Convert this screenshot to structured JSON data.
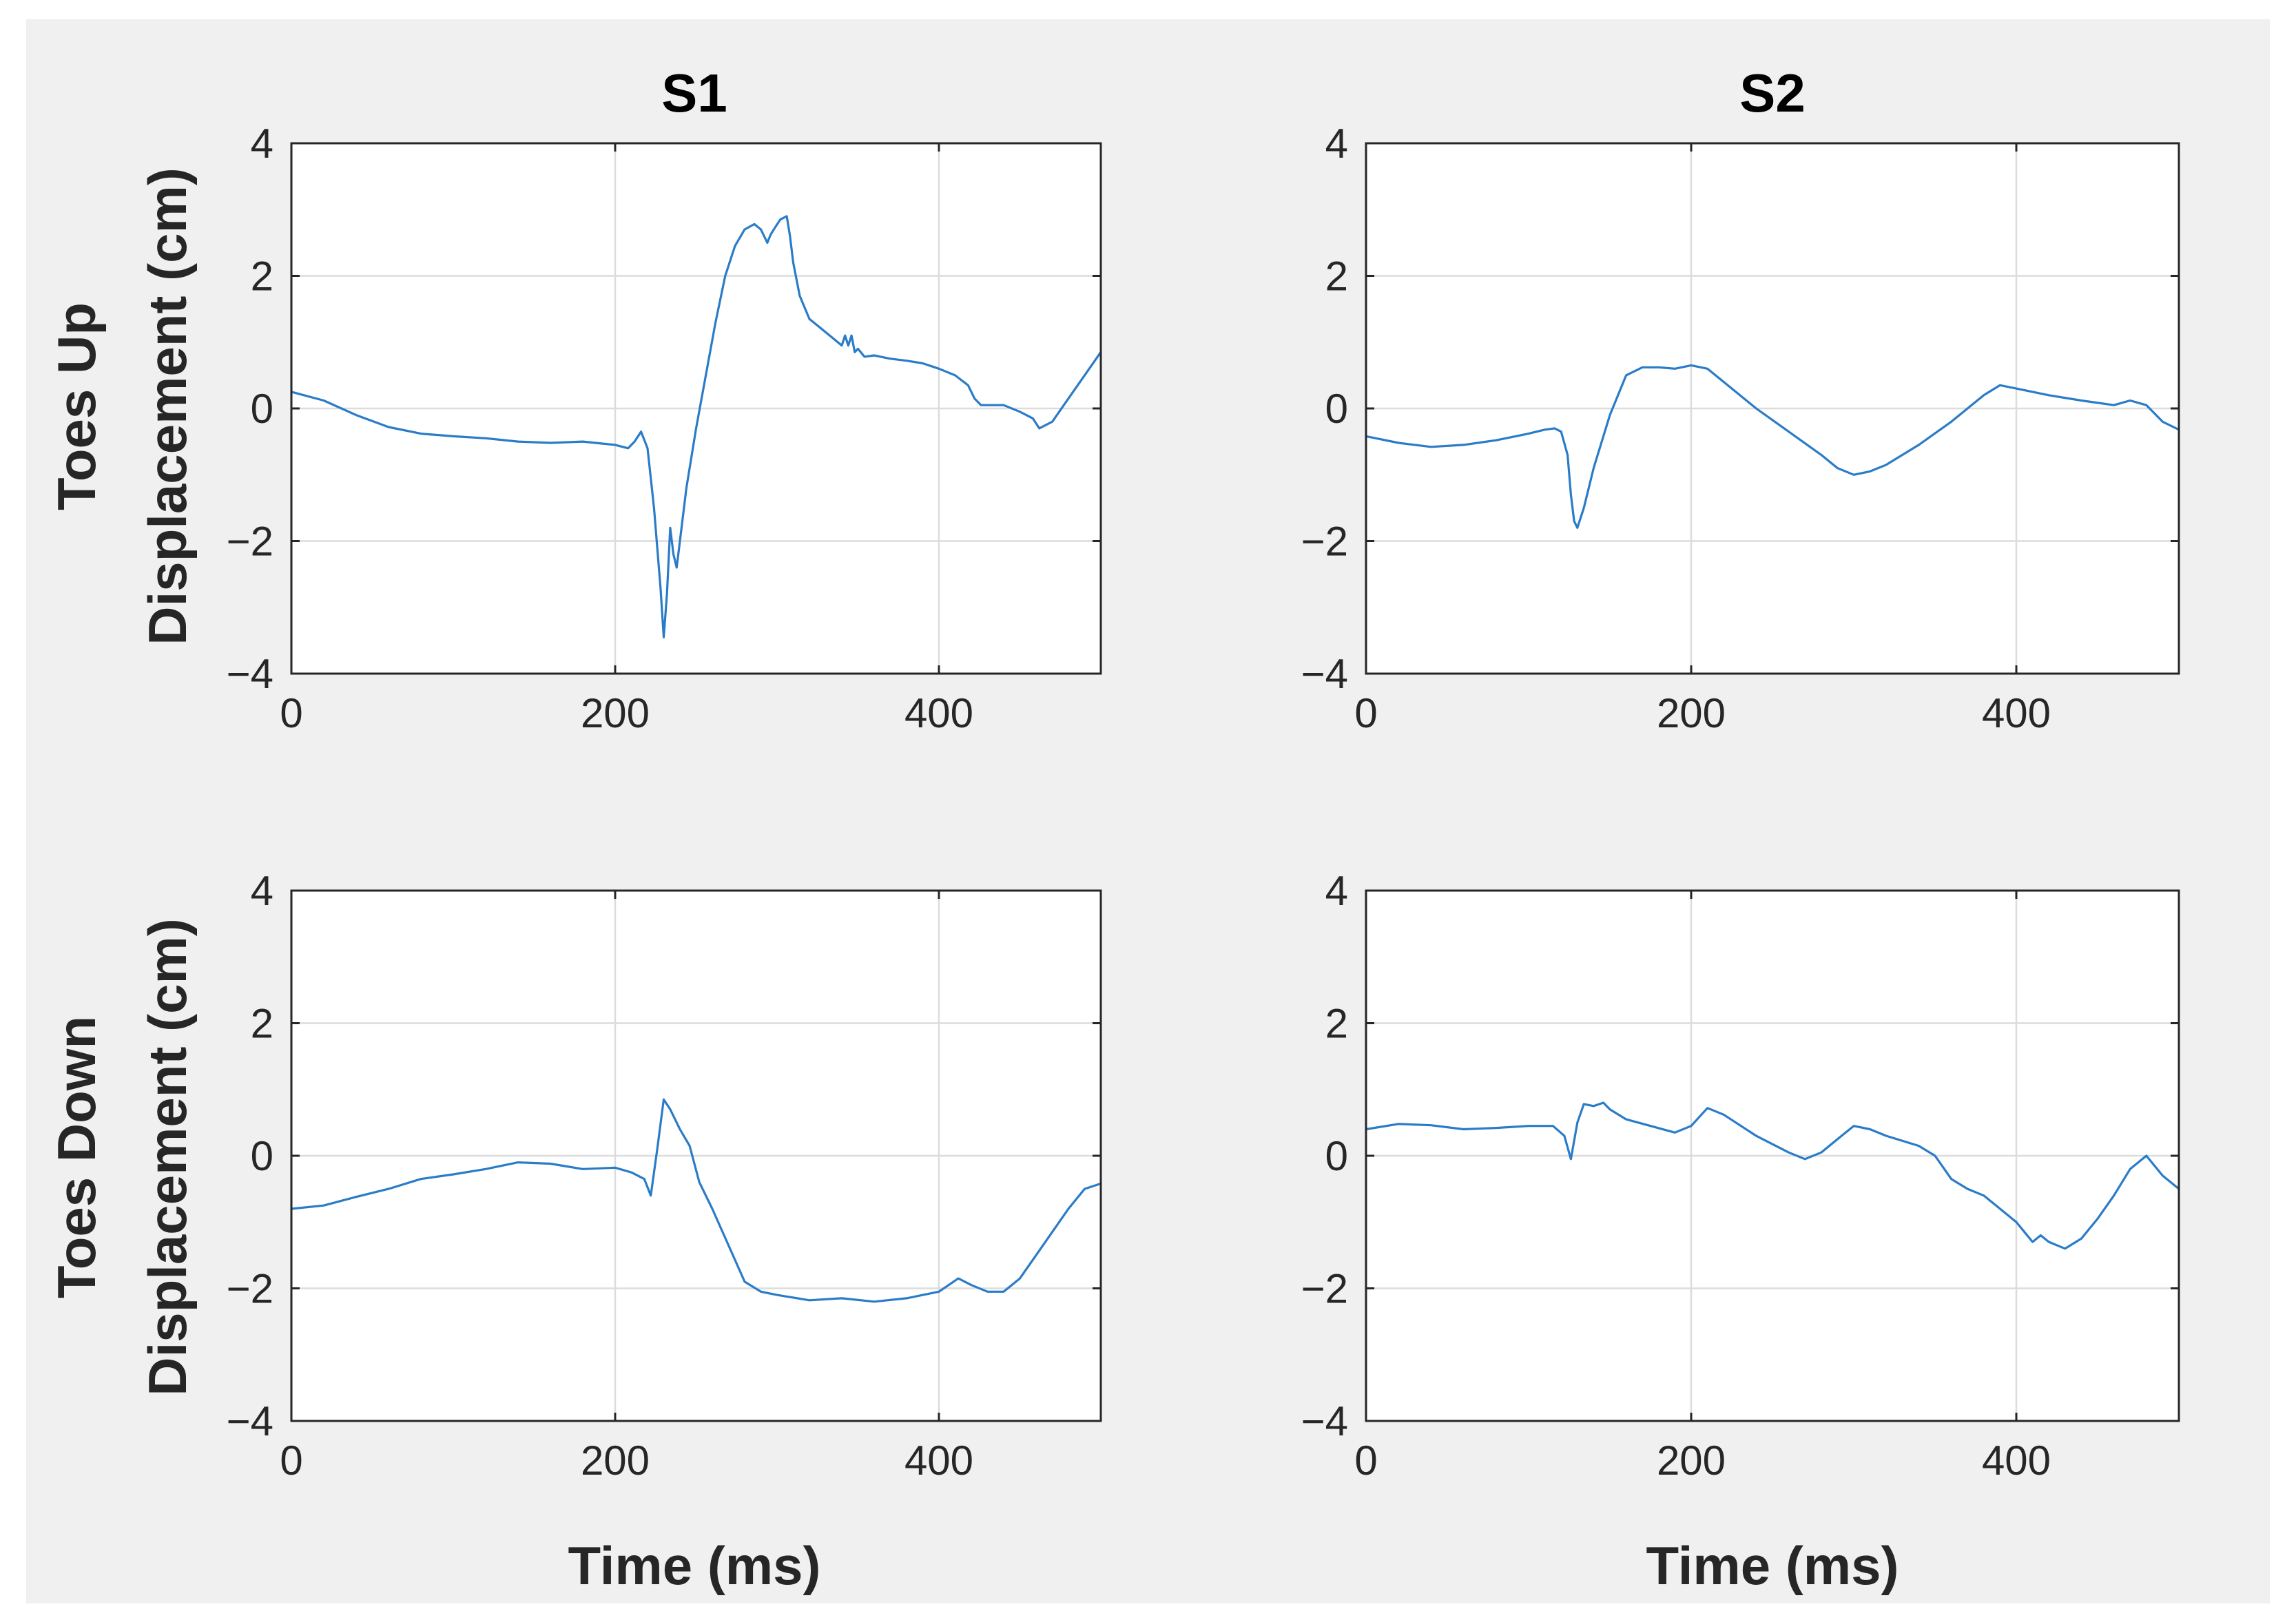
{
  "figure": {
    "background": "#f0f0f0",
    "line_color": "#2a7cc8"
  },
  "chart_data": [
    {
      "type": "line",
      "title": "S1",
      "xlabel": "",
      "ylabel": [
        "Toes Up",
        "Displacement (cm)"
      ],
      "xlim": [
        0,
        500
      ],
      "ylim": [
        -4,
        4
      ],
      "xticks": [
        0,
        200,
        400
      ],
      "yticks": [
        -4,
        -2,
        0,
        2,
        4
      ],
      "xtick_labels": [
        "0",
        "200",
        "400"
      ],
      "ytick_labels": [
        "−4",
        "−2",
        "0",
        "2",
        "4"
      ],
      "grid": true,
      "series": [
        {
          "name": "S1 Toes Up",
          "x": [
            0,
            20,
            40,
            60,
            80,
            100,
            120,
            140,
            160,
            180,
            200,
            208,
            212,
            216,
            220,
            224,
            228,
            230,
            232,
            234,
            236,
            238,
            240,
            244,
            250,
            256,
            262,
            268,
            274,
            280,
            286,
            290,
            294,
            296,
            298,
            302,
            306,
            308,
            310,
            314,
            320,
            330,
            340,
            342,
            344,
            346,
            348,
            350,
            354,
            360,
            370,
            380,
            390,
            400,
            410,
            418,
            422,
            426,
            430,
            440,
            450,
            458,
            462,
            470,
            480,
            490,
            500
          ],
          "y": [
            0.25,
            0.12,
            -0.1,
            -0.28,
            -0.38,
            -0.42,
            -0.45,
            -0.5,
            -0.52,
            -0.5,
            -0.55,
            -0.6,
            -0.5,
            -0.35,
            -0.6,
            -1.5,
            -2.7,
            -3.45,
            -2.8,
            -1.8,
            -2.2,
            -2.4,
            -2.0,
            -1.2,
            -0.3,
            0.5,
            1.3,
            2.0,
            2.45,
            2.7,
            2.78,
            2.7,
            2.5,
            2.62,
            2.7,
            2.85,
            2.9,
            2.6,
            2.2,
            1.7,
            1.35,
            1.15,
            0.95,
            1.1,
            0.95,
            1.1,
            0.85,
            0.9,
            0.78,
            0.8,
            0.75,
            0.72,
            0.68,
            0.6,
            0.5,
            0.35,
            0.15,
            0.05,
            0.05,
            0.05,
            -0.05,
            -0.15,
            -0.3,
            -0.2,
            0.15,
            0.5,
            0.85
          ]
        }
      ]
    },
    {
      "type": "line",
      "title": "S2",
      "xlabel": "",
      "ylabel": "",
      "xlim": [
        0,
        500
      ],
      "ylim": [
        -4,
        4
      ],
      "xticks": [
        0,
        200,
        400
      ],
      "yticks": [
        -4,
        -2,
        0,
        2,
        4
      ],
      "xtick_labels": [
        "0",
        "200",
        "400"
      ],
      "ytick_labels": [
        "−4",
        "−2",
        "0",
        "2",
        "4"
      ],
      "grid": true,
      "series": [
        {
          "name": "S2 Toes Up",
          "x": [
            0,
            20,
            40,
            60,
            80,
            100,
            110,
            116,
            120,
            124,
            126,
            128,
            130,
            134,
            140,
            150,
            160,
            170,
            180,
            190,
            200,
            210,
            220,
            240,
            260,
            280,
            290,
            300,
            310,
            320,
            340,
            360,
            380,
            390,
            400,
            420,
            440,
            460,
            470,
            480,
            490,
            500
          ],
          "y": [
            -0.42,
            -0.52,
            -0.58,
            -0.55,
            -0.48,
            -0.38,
            -0.32,
            -0.3,
            -0.35,
            -0.7,
            -1.3,
            -1.7,
            -1.8,
            -1.5,
            -0.9,
            -0.1,
            0.5,
            0.62,
            0.62,
            0.6,
            0.65,
            0.6,
            0.4,
            0.0,
            -0.35,
            -0.7,
            -0.9,
            -1.0,
            -0.95,
            -0.85,
            -0.55,
            -0.2,
            0.2,
            0.35,
            0.3,
            0.2,
            0.12,
            0.05,
            0.12,
            0.05,
            -0.2,
            -0.32
          ]
        }
      ]
    },
    {
      "type": "line",
      "title": "",
      "xlabel": "Time (ms)",
      "ylabel": [
        "Toes Down",
        "Displacement (cm)"
      ],
      "xlim": [
        0,
        500
      ],
      "ylim": [
        -4,
        4
      ],
      "xticks": [
        0,
        200,
        400
      ],
      "yticks": [
        -4,
        -2,
        0,
        2,
        4
      ],
      "xtick_labels": [
        "0",
        "200",
        "400"
      ],
      "ytick_labels": [
        "−4",
        "−2",
        "0",
        "2",
        "4"
      ],
      "grid": true,
      "series": [
        {
          "name": "S1 Toes Down",
          "x": [
            0,
            20,
            40,
            60,
            80,
            100,
            120,
            140,
            160,
            180,
            200,
            210,
            218,
            222,
            226,
            230,
            234,
            240,
            246,
            252,
            260,
            270,
            280,
            290,
            300,
            320,
            340,
            360,
            380,
            400,
            406,
            412,
            420,
            430,
            440,
            450,
            460,
            470,
            480,
            490,
            500
          ],
          "y": [
            -0.8,
            -0.75,
            -0.62,
            -0.5,
            -0.35,
            -0.28,
            -0.2,
            -0.1,
            -0.12,
            -0.2,
            -0.18,
            -0.25,
            -0.35,
            -0.6,
            0.1,
            0.85,
            0.7,
            0.4,
            0.15,
            -0.4,
            -0.8,
            -1.35,
            -1.9,
            -2.05,
            -2.1,
            -2.18,
            -2.15,
            -2.2,
            -2.15,
            -2.05,
            -1.95,
            -1.85,
            -1.95,
            -2.05,
            -2.05,
            -1.85,
            -1.5,
            -1.15,
            -0.8,
            -0.5,
            -0.42
          ]
        }
      ]
    },
    {
      "type": "line",
      "title": "",
      "xlabel": "Time (ms)",
      "ylabel": "",
      "xlim": [
        0,
        500
      ],
      "ylim": [
        -4,
        4
      ],
      "xticks": [
        0,
        200,
        400
      ],
      "yticks": [
        -4,
        -2,
        0,
        2,
        4
      ],
      "xtick_labels": [
        "0",
        "200",
        "400"
      ],
      "ytick_labels": [
        "−4",
        "−2",
        "0",
        "2",
        "4"
      ],
      "grid": true,
      "series": [
        {
          "name": "S2 Toes Down",
          "x": [
            0,
            20,
            40,
            60,
            80,
            100,
            115,
            122,
            126,
            130,
            134,
            140,
            146,
            150,
            160,
            175,
            190,
            200,
            210,
            220,
            240,
            260,
            270,
            280,
            290,
            300,
            310,
            320,
            340,
            350,
            360,
            370,
            380,
            390,
            400,
            405,
            410,
            415,
            420,
            430,
            440,
            450,
            460,
            470,
            480,
            490,
            500
          ],
          "y": [
            0.4,
            0.48,
            0.46,
            0.4,
            0.42,
            0.45,
            0.45,
            0.3,
            -0.05,
            0.5,
            0.78,
            0.75,
            0.8,
            0.7,
            0.55,
            0.45,
            0.35,
            0.45,
            0.72,
            0.62,
            0.3,
            0.05,
            -0.05,
            0.05,
            0.25,
            0.45,
            0.4,
            0.3,
            0.15,
            0.0,
            -0.35,
            -0.5,
            -0.6,
            -0.8,
            -1.0,
            -1.15,
            -1.3,
            -1.2,
            -1.3,
            -1.4,
            -1.25,
            -0.95,
            -0.6,
            -0.2,
            0.0,
            -0.3,
            -0.5
          ]
        }
      ]
    }
  ]
}
